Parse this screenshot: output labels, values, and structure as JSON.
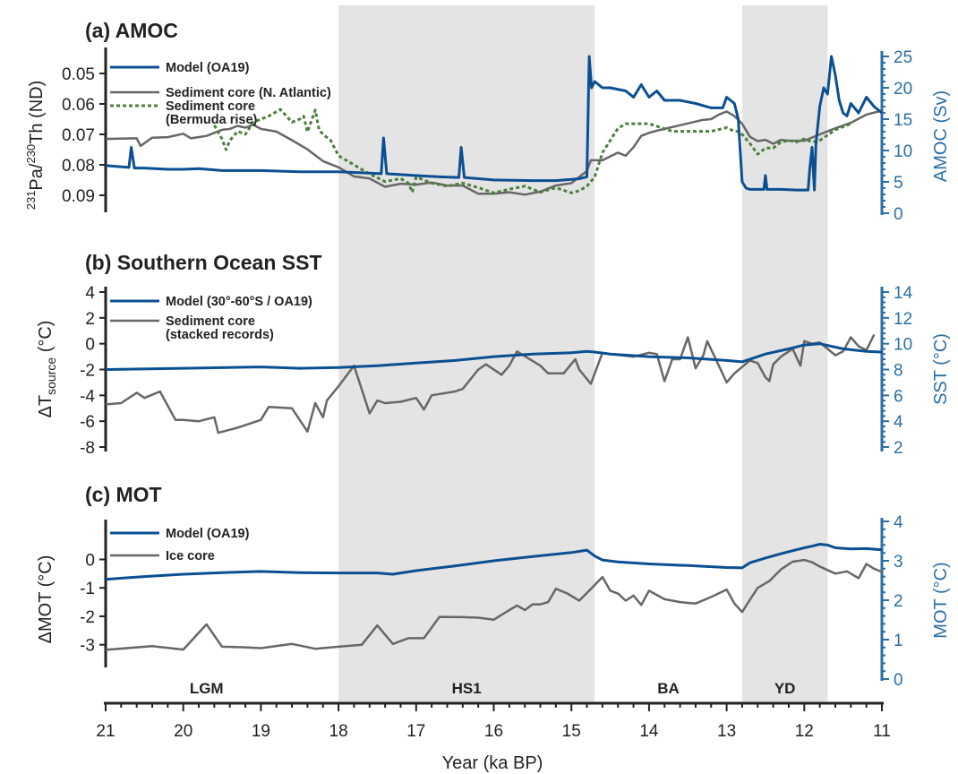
{
  "colors": {
    "model": "#0b4f93",
    "core": "#676767",
    "bermuda": "#4e7f3e",
    "shade": "#e4e4e4",
    "right_axis": "#2a6fa5"
  },
  "x_axis": {
    "label": "Year (ka BP)",
    "range": [
      21,
      11
    ],
    "ticks": [
      "21",
      "20",
      "19",
      "18",
      "17",
      "16",
      "15",
      "14",
      "13",
      "12",
      "11"
    ]
  },
  "periods": [
    {
      "label": "LGM",
      "center": 19.7
    },
    {
      "label": "HS1",
      "center": 16.35
    },
    {
      "label": "BA",
      "center": 13.75
    },
    {
      "label": "YD",
      "center": 12.25
    }
  ],
  "shaded_intervals": [
    [
      18.0,
      14.7
    ],
    [
      12.8,
      11.7
    ]
  ],
  "chart_data": [
    {
      "type": "line",
      "title": "(a) AMOC",
      "ylabel_left": {
        "parts": [
          "231",
          "Pa/",
          "230",
          "Th (ND)"
        ]
      },
      "ylabel_right": "AMOC (Sv)",
      "ylim_left": [
        0.095,
        0.045
      ],
      "yticks_left": [
        "0.05",
        "0.06",
        "0.07",
        "0.08",
        "0.09"
      ],
      "ylim_right": [
        0,
        25
      ],
      "yticks_right": [
        "0",
        "5",
        "10",
        "15",
        "20",
        "25"
      ],
      "series": [
        {
          "name": "Model (OA19)",
          "axis": "right",
          "color": "model",
          "x": [
            21,
            20.7,
            20.67,
            20.63,
            20.5,
            20.2,
            20,
            19.8,
            19.5,
            19,
            18.5,
            18,
            17.6,
            17.45,
            17.42,
            17.38,
            17,
            16.7,
            16.45,
            16.42,
            16.38,
            16,
            15.5,
            15.2,
            14.9,
            14.8,
            14.77,
            14.74,
            14.7,
            14.6,
            14.5,
            14.3,
            14.2,
            14.1,
            14,
            13.9,
            13.8,
            13.6,
            13.4,
            13.2,
            13.05,
            13,
            12.9,
            12.85,
            12.8,
            12.75,
            12.7,
            12.6,
            12.52,
            12.5,
            12.48,
            12.3,
            12.1,
            11.95,
            11.93,
            11.9,
            11.87,
            11.85,
            11.8,
            11.75,
            11.7,
            11.65,
            11.6,
            11.55,
            11.5,
            11.45,
            11.4,
            11.3,
            11.2,
            11.1,
            11
          ],
          "y": [
            7.6,
            7.3,
            10.5,
            7.2,
            7.2,
            7.0,
            7.0,
            7.1,
            6.8,
            6.8,
            6.6,
            6.6,
            6.4,
            6.3,
            12.0,
            6.3,
            6.0,
            5.8,
            5.7,
            10.5,
            5.7,
            5.3,
            5.2,
            5.2,
            5.5,
            5.8,
            25,
            20,
            21,
            20,
            20,
            19.5,
            18.5,
            20.5,
            18.5,
            19.5,
            18.0,
            18.0,
            17.5,
            16.8,
            16.8,
            18.5,
            17.5,
            15.0,
            5.0,
            4.0,
            3.8,
            3.8,
            3.8,
            6.0,
            3.8,
            3.8,
            3.7,
            3.7,
            7.0,
            10.5,
            3.7,
            11.0,
            17.0,
            20.0,
            19.0,
            25,
            22,
            18.0,
            16.0,
            15.5,
            17.5,
            16.0,
            18.5,
            17.0,
            16.0
          ]
        },
        {
          "name": "Sediment core (N. Atlantic)",
          "axis": "left",
          "color": "core",
          "x": [
            21,
            20.6,
            20.55,
            20.4,
            20.2,
            20.0,
            19.9,
            19.7,
            19.5,
            19.4,
            19.3,
            19.2,
            19.1,
            19.0,
            18.8,
            18.6,
            18.4,
            18.2,
            18.0,
            17.8,
            17.6,
            17.4,
            17.2,
            17.0,
            16.8,
            16.6,
            16.4,
            16.2,
            16.0,
            15.8,
            15.6,
            15.4,
            15.2,
            15.0,
            14.8,
            14.75,
            14.6,
            14.4,
            14.3,
            14.2,
            14.1,
            14.0,
            13.9,
            13.6,
            13.3,
            13.2,
            13.1,
            13.0,
            12.9,
            12.8,
            12.7,
            12.6,
            12.5,
            12.4,
            12.3,
            12.2,
            12.1,
            12.0,
            11.8,
            11.6,
            11.4,
            11.2,
            11.0
          ],
          "y": [
            0.0715,
            0.0713,
            0.0738,
            0.0711,
            0.0709,
            0.0698,
            0.0713,
            0.0705,
            0.0685,
            0.0682,
            0.0672,
            0.0678,
            0.0668,
            0.0682,
            0.0691,
            0.0719,
            0.0749,
            0.0788,
            0.0808,
            0.0838,
            0.0845,
            0.0872,
            0.0862,
            0.0865,
            0.0858,
            0.0868,
            0.0868,
            0.0895,
            0.0895,
            0.089,
            0.0898,
            0.0888,
            0.0868,
            0.086,
            0.082,
            0.0785,
            0.0785,
            0.076,
            0.077,
            0.0742,
            0.0705,
            0.0695,
            0.0688,
            0.067,
            0.0652,
            0.065,
            0.0635,
            0.0625,
            0.064,
            0.0665,
            0.0708,
            0.0722,
            0.0718,
            0.0731,
            0.0718,
            0.0721,
            0.0721,
            0.0721,
            0.07,
            0.068,
            0.0662,
            0.0635,
            0.0622
          ]
        },
        {
          "name": "Sediment core (Bermuda rise)",
          "axis": "left",
          "color": "bermuda",
          "x": [
            19.6,
            19.5,
            19.45,
            19.4,
            19.3,
            19.2,
            19.1,
            18.9,
            18.75,
            18.6,
            18.5,
            18.45,
            18.4,
            18.3,
            18.25,
            18.2,
            18.1,
            18.0,
            17.8,
            17.6,
            17.4,
            17.2,
            17.1,
            17.05,
            17.0,
            16.8,
            16.6,
            16.4,
            16.2,
            16.0,
            15.8,
            15.6,
            15.4,
            15.2,
            15.0,
            14.9,
            14.8,
            14.7,
            14.6,
            14.5,
            14.4,
            14.3,
            14.0,
            13.7,
            13.5,
            13.2,
            13.0,
            12.9,
            12.85,
            12.8,
            12.7,
            12.6,
            12.5,
            12.4,
            12.3,
            12.2,
            12.1,
            12.0,
            11.9,
            11.8,
            11.6,
            11.4
          ],
          "y": [
            0.067,
            0.0715,
            0.075,
            0.072,
            0.069,
            0.07,
            0.066,
            0.064,
            0.0618,
            0.066,
            0.065,
            0.064,
            0.0692,
            0.062,
            0.0685,
            0.07,
            0.072,
            0.077,
            0.08,
            0.083,
            0.0855,
            0.0845,
            0.086,
            0.089,
            0.084,
            0.086,
            0.087,
            0.086,
            0.0875,
            0.0892,
            0.088,
            0.087,
            0.089,
            0.0875,
            0.0892,
            0.0885,
            0.087,
            0.084,
            0.076,
            0.072,
            0.068,
            0.0665,
            0.0665,
            0.069,
            0.069,
            0.069,
            0.0678,
            0.069,
            0.069,
            0.07,
            0.073,
            0.0765,
            0.0745,
            0.0745,
            0.0725,
            0.072,
            0.0725,
            0.0715,
            0.0725,
            0.072,
            0.0685,
            0.0665
          ]
        }
      ]
    },
    {
      "type": "line",
      "title": "(b) Southern Ocean SST",
      "ylabel_left": {
        "parts": [
          "ΔT",
          "source",
          " (°C)"
        ]
      },
      "ylabel_right": "SST (°C)",
      "ylim_left": [
        -8,
        4
      ],
      "yticks_left": [
        "-8",
        "-6",
        "-4",
        "-2",
        "0",
        "2",
        "4"
      ],
      "ylim_right": [
        2,
        14
      ],
      "yticks_right": [
        "2",
        "4",
        "6",
        "8",
        "10",
        "12",
        "14"
      ],
      "series": [
        {
          "name": "Model (30°-60°S / OA19)",
          "axis": "right",
          "color": "model",
          "x": [
            21,
            20,
            19,
            18.5,
            18,
            17.5,
            17,
            16.5,
            16,
            15.5,
            15,
            14.8,
            14.7,
            14.5,
            14,
            13.5,
            13,
            12.8,
            12.5,
            12.2,
            12,
            11.8,
            11.5,
            11.2,
            11
          ],
          "y": [
            8.0,
            8.1,
            8.2,
            8.1,
            8.15,
            8.3,
            8.5,
            8.7,
            9.0,
            9.2,
            9.3,
            9.4,
            9.35,
            9.2,
            9.0,
            8.9,
            8.7,
            8.6,
            9.2,
            9.6,
            9.9,
            10.0,
            9.6,
            9.4,
            9.35
          ]
        },
        {
          "name": "Sediment core (stacked records)",
          "axis": "left",
          "color": "core",
          "x": [
            21,
            20.8,
            20.6,
            20.5,
            20.3,
            20.1,
            20.0,
            19.8,
            19.6,
            19.55,
            19.3,
            19.0,
            18.9,
            18.6,
            18.4,
            18.3,
            18.2,
            18.15,
            18.0,
            17.8,
            17.6,
            17.5,
            17.4,
            17.2,
            17.0,
            16.9,
            16.8,
            16.5,
            16.4,
            16.2,
            16.1,
            15.9,
            15.8,
            15.7,
            15.4,
            15.3,
            15.1,
            14.95,
            14.9,
            14.75,
            14.6,
            14.5,
            14.2,
            14.0,
            13.9,
            13.8,
            13.7,
            13.6,
            13.5,
            13.4,
            13.3,
            13.25,
            13.1,
            13.0,
            12.9,
            12.8,
            12.7,
            12.6,
            12.5,
            12.45,
            12.4,
            12.3,
            12.15,
            12.05,
            12.0,
            11.9,
            11.8,
            11.7,
            11.6,
            11.5,
            11.4,
            11.3,
            11.2,
            11.1
          ],
          "y": [
            -4.7,
            -4.6,
            -3.8,
            -4.2,
            -3.7,
            -5.9,
            -5.9,
            -6.0,
            -5.7,
            -6.9,
            -6.5,
            -5.9,
            -4.9,
            -5.0,
            -6.8,
            -4.6,
            -5.7,
            -4.4,
            -3.3,
            -1.7,
            -5.4,
            -4.4,
            -4.6,
            -4.5,
            -4.2,
            -5.1,
            -4.0,
            -3.7,
            -3.5,
            -2.0,
            -1.6,
            -2.4,
            -1.7,
            -0.6,
            -1.7,
            -2.3,
            -2.3,
            -1.2,
            -2.0,
            -3.1,
            -0.7,
            -0.8,
            -1.0,
            -0.7,
            -0.8,
            -2.9,
            -1.2,
            -1.2,
            0.5,
            -1.9,
            -0.9,
            0.2,
            -1.7,
            -3.0,
            -2.3,
            -1.8,
            -1.3,
            -1.5,
            -2.6,
            -2.9,
            -1.6,
            -1.0,
            -0.4,
            -1.7,
            0.2,
            0.0,
            0.1,
            -0.4,
            -0.9,
            -0.6,
            0.5,
            -0.2,
            -0.5,
            0.7
          ]
        }
      ]
    },
    {
      "type": "line",
      "title": "(c) MOT",
      "ylabel_left": {
        "parts": [
          "ΔMOT (°C)"
        ]
      },
      "ylabel_right": "MOT (°C)",
      "ylim_left": [
        -3.45,
        0.55
      ],
      "yticks_left": [
        "-3",
        "-2",
        "-1",
        "0"
      ],
      "ylim_right": [
        0,
        4
      ],
      "yticks_right": [
        "0",
        "1",
        "2",
        "3",
        "4"
      ],
      "series": [
        {
          "name": "Model (OA19)",
          "axis": "right",
          "color": "model",
          "x": [
            21,
            20.5,
            20,
            19.5,
            19,
            18.5,
            18,
            17.5,
            17.3,
            17,
            16.5,
            16,
            15.5,
            15,
            14.8,
            14.7,
            14.6,
            14.4,
            14,
            13.5,
            13,
            12.8,
            12.7,
            12.5,
            12.3,
            12,
            11.9,
            11.8,
            11.7,
            11.6,
            11.4,
            11.2,
            11
          ],
          "y": [
            2.53,
            2.6,
            2.66,
            2.7,
            2.73,
            2.7,
            2.69,
            2.69,
            2.66,
            2.75,
            2.87,
            3.0,
            3.11,
            3.21,
            3.27,
            3.12,
            3.02,
            2.97,
            2.92,
            2.88,
            2.83,
            2.82,
            2.95,
            3.07,
            3.18,
            3.33,
            3.37,
            3.42,
            3.4,
            3.33,
            3.3,
            3.31,
            3.28
          ]
        },
        {
          "name": "Ice core",
          "axis": "left",
          "color": "core",
          "x": [
            21,
            20.4,
            20,
            19.7,
            19.5,
            19.2,
            19.0,
            18.6,
            18.3,
            18.0,
            17.7,
            17.5,
            17.3,
            17.1,
            16.9,
            16.7,
            16.4,
            16.2,
            16.0,
            15.8,
            15.7,
            15.6,
            15.5,
            15.4,
            15.3,
            15.2,
            15.05,
            14.9,
            14.75,
            14.6,
            14.5,
            14.4,
            14.3,
            14.2,
            14.1,
            14.0,
            13.8,
            13.6,
            13.4,
            13.2,
            13.0,
            12.9,
            12.8,
            12.7,
            12.6,
            12.45,
            12.3,
            12.15,
            12.0,
            11.9,
            11.8,
            11.6,
            11.45,
            11.3,
            11.2,
            11.1,
            11
          ],
          "y": [
            -3.18,
            -3.05,
            -3.17,
            -2.28,
            -3.07,
            -3.09,
            -3.12,
            -2.97,
            -3.14,
            -3.07,
            -3.0,
            -2.32,
            -2.97,
            -2.77,
            -2.77,
            -2.02,
            -2.03,
            -2.05,
            -2.12,
            -1.78,
            -1.62,
            -1.78,
            -1.58,
            -1.58,
            -1.5,
            -1.03,
            -1.2,
            -1.45,
            -1.04,
            -0.62,
            -1.1,
            -1.2,
            -1.45,
            -1.27,
            -1.6,
            -1.1,
            -1.4,
            -1.5,
            -1.55,
            -1.32,
            -1.06,
            -1.55,
            -1.85,
            -1.42,
            -1.0,
            -0.76,
            -0.35,
            -0.08,
            -0.02,
            -0.1,
            -0.25,
            -0.5,
            -0.42,
            -0.66,
            -0.16,
            -0.33,
            -0.44
          ]
        }
      ]
    }
  ]
}
